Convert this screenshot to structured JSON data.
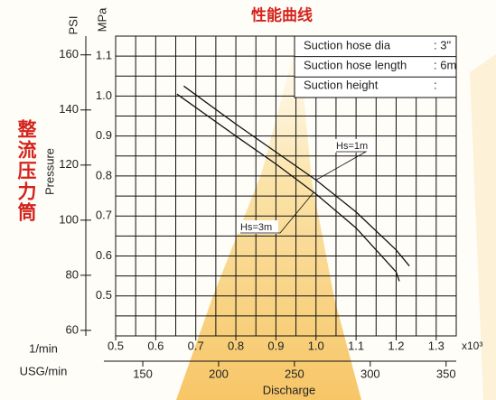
{
  "chart_data": {
    "type": "line",
    "title": "性能曲线",
    "side_title": "整流压力筒",
    "y_label": "Pressure",
    "y_unit": "MPa",
    "y2_unit": "PSI",
    "x_unit": "1/min",
    "x2_unit": "USG/min",
    "x_label": "Discharge",
    "x_multiplier": "x10³",
    "xlim": [
      0.5,
      1.35
    ],
    "xticks": [
      0.5,
      0.6,
      0.7,
      0.8,
      0.9,
      {
        "value": 1,
        "label": "1.0"
      },
      1.1,
      1.2,
      1.3
    ],
    "x2lim": [
      132.1,
      356.7
    ],
    "x2ticks": [
      150,
      200,
      250,
      300,
      350
    ],
    "ylim": [
      0.4,
      1.15
    ],
    "yticks": [
      0.5,
      0.6,
      0.7,
      0.8,
      0.9,
      {
        "value": 1,
        "label": "1.0"
      },
      1.1
    ],
    "y2lim": [
      58,
      166.8
    ],
    "y2ticks": [
      60,
      80,
      100,
      120,
      140,
      160
    ],
    "grid": true,
    "minor_grid": true,
    "series": [
      {
        "name": "Hs=1m",
        "color": "#111111",
        "x": [
          0.67,
          0.8,
          0.9,
          1.0,
          1.1,
          1.2,
          1.233
        ],
        "values": [
          1.025,
          0.93,
          0.86,
          0.79,
          0.71,
          0.615,
          0.575
        ]
      },
      {
        "name": "Hs=3m",
        "color": "#111111",
        "x": [
          0.653,
          0.8,
          0.9,
          1.0,
          1.1,
          1.2,
          1.208
        ],
        "values": [
          1.005,
          0.9,
          0.83,
          0.755,
          0.67,
          0.56,
          0.537
        ]
      }
    ],
    "info_table": [
      [
        "Suction hose dia",
        ": 3\""
      ],
      [
        "Suction hose length",
        ": 6m"
      ],
      [
        "Suction height",
        ":"
      ]
    ]
  }
}
